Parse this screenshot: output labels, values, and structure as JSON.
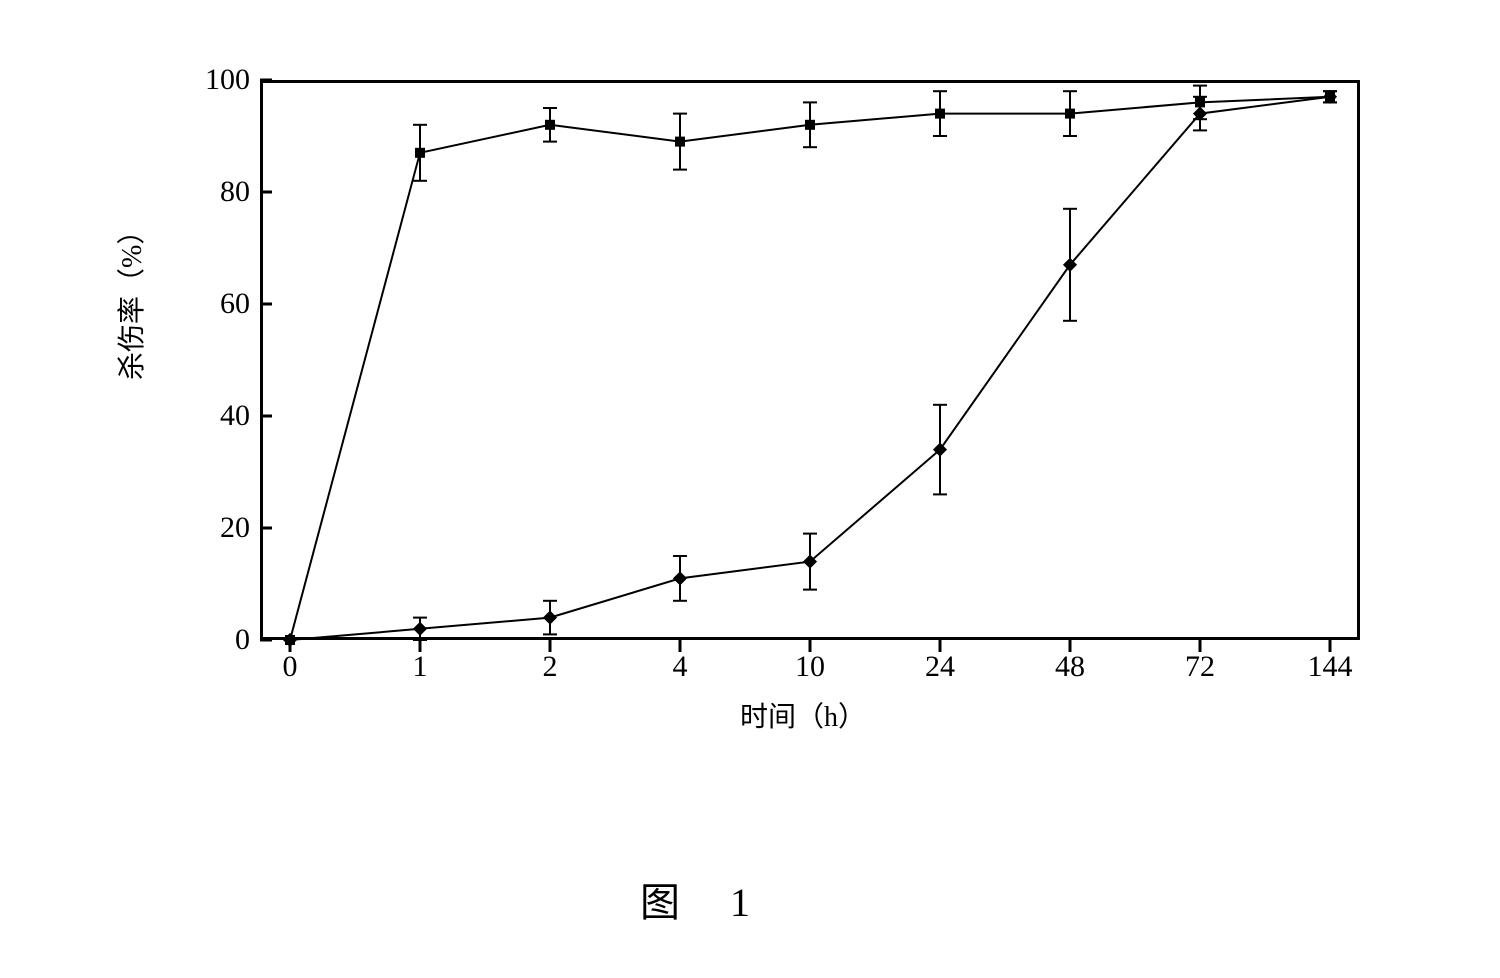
{
  "figure": {
    "label": "图  1",
    "label_fontsize": 40,
    "background_color": "#ffffff"
  },
  "chart": {
    "type": "line",
    "xlabel": "时间（h）",
    "ylabel": "杀伤率（%）",
    "label_fontsize": 28,
    "tick_fontsize": 30,
    "ylim": [
      0,
      100
    ],
    "ytick_step": 20,
    "yticks": [
      0,
      20,
      40,
      60,
      80,
      100
    ],
    "x_categories": [
      "0",
      "1",
      "2",
      "4",
      "10",
      "24",
      "48",
      "72",
      "144"
    ],
    "axis_color": "#000000",
    "line_color": "#000000",
    "marker_color": "#000000",
    "line_width": 2,
    "marker_size": 10,
    "errorbar_cap_width": 14,
    "series": [
      {
        "name": "series-upper",
        "marker": "square",
        "values": [
          0,
          87,
          92,
          89,
          92,
          94,
          94,
          96,
          97
        ],
        "errors": [
          0,
          5,
          3,
          5,
          4,
          4,
          4,
          3,
          1
        ]
      },
      {
        "name": "series-lower",
        "marker": "diamond",
        "values": [
          0,
          2,
          4,
          11,
          14,
          34,
          67,
          94,
          97
        ],
        "errors": [
          0,
          2,
          3,
          4,
          5,
          8,
          10,
          3,
          1
        ]
      }
    ]
  }
}
